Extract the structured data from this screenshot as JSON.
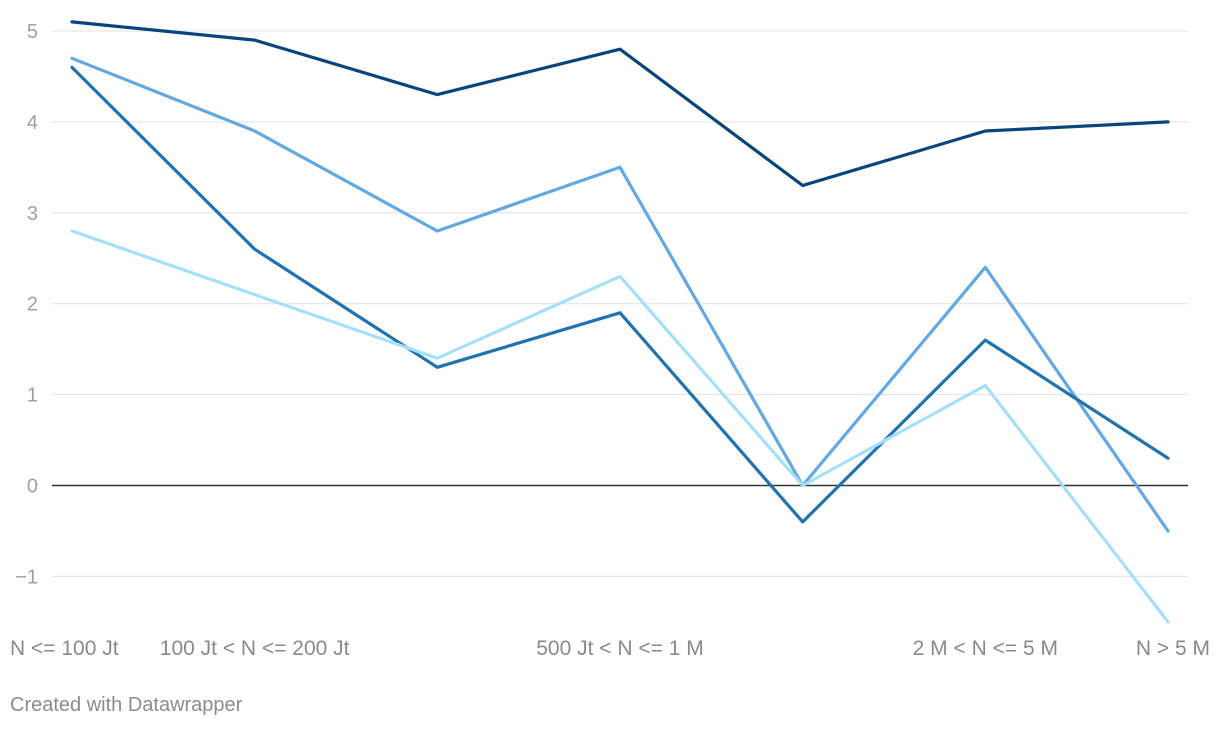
{
  "chart_data": {
    "type": "line",
    "categories": [
      "N <= 100 Jt",
      "100 Jt < N <= 200 Jt",
      "",
      "500 Jt < N <= 1 M",
      "",
      "2 M < N <= 5 M",
      "N > 5 M"
    ],
    "x_tick_labels_shown": [
      "N <= 100 Jt",
      "100 Jt < N <= 200 Jt",
      "500 Jt < N <= 1 M",
      "2 M < N <= 5 M",
      "N > 5 M"
    ],
    "series": [
      {
        "color": "#08457e",
        "values": [
          5.1,
          4.9,
          4.3,
          4.8,
          3.3,
          3.9,
          4.0
        ]
      },
      {
        "color": "#62a8e5",
        "values": [
          4.7,
          3.9,
          2.8,
          3.5,
          0.0,
          2.4,
          -0.5
        ]
      },
      {
        "color": "#1f73b0",
        "values": [
          4.6,
          2.6,
          1.3,
          1.9,
          -0.4,
          1.6,
          0.3
        ]
      },
      {
        "color": "#a4e1f8",
        "values": [
          2.8,
          2.1,
          1.4,
          2.3,
          0.0,
          1.1,
          -1.5
        ]
      }
    ],
    "y_ticks": [
      "5",
      "4",
      "3",
      "2",
      "1",
      "0",
      "−1"
    ],
    "ylim": [
      -1.5,
      5.2
    ],
    "grid": true,
    "title": "",
    "xlabel": "",
    "ylabel": ""
  },
  "footer": {
    "credit": "Created with Datawrapper"
  }
}
